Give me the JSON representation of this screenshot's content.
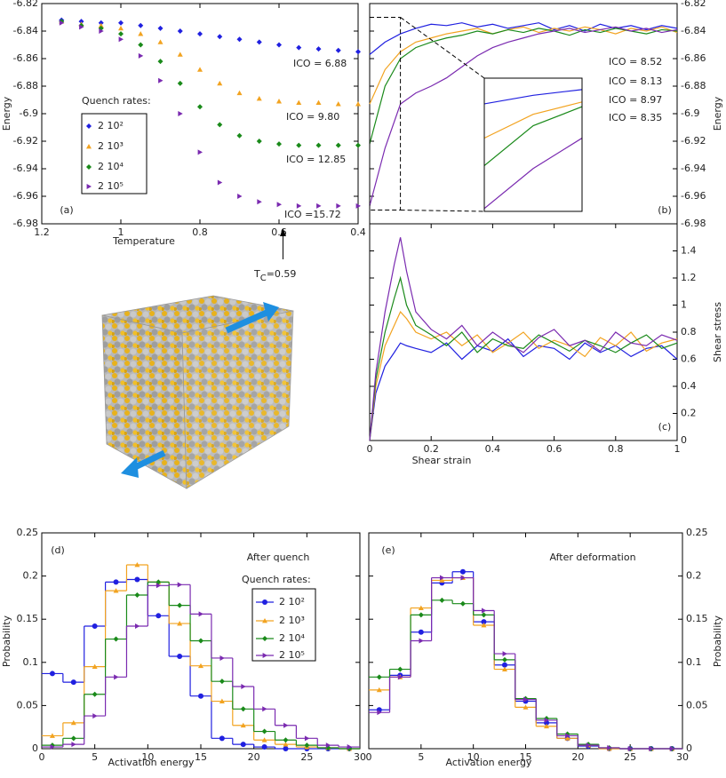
{
  "chart_data": [
    {
      "type": "scatter",
      "panel_label": "(a)",
      "x_label": "Temperature",
      "y_label": "Energy",
      "xlim": [
        1.2,
        0.4
      ],
      "xticks": [
        1.2,
        1,
        0.8,
        0.6,
        0.4
      ],
      "ylim": [
        -6.98,
        -6.82
      ],
      "yticks": [
        -6.98,
        -6.96,
        -6.94,
        -6.92,
        -6.9,
        -6.88,
        -6.86,
        -6.84,
        -6.82
      ],
      "legend_title": "Quench rates:",
      "tc": {
        "value": 0.59,
        "label_parts": [
          "T",
          "C",
          "=0.59"
        ]
      },
      "x": [
        1.15,
        1.1,
        1.05,
        1.0,
        0.95,
        0.9,
        0.85,
        0.8,
        0.75,
        0.7,
        0.65,
        0.6,
        0.55,
        0.5,
        0.45,
        0.4
      ],
      "series": [
        {
          "name": "2 10²",
          "color": "#2020e0",
          "marker": "diamond",
          "annotation": "ICO = 6.88",
          "values": [
            -6.832,
            -6.833,
            -6.834,
            -6.834,
            -6.836,
            -6.838,
            -6.84,
            -6.842,
            -6.844,
            -6.846,
            -6.848,
            -6.85,
            -6.852,
            -6.853,
            -6.854,
            -6.855
          ]
        },
        {
          "name": "2 10³",
          "color": "#f2a320",
          "marker": "triangle-up",
          "annotation": "ICO = 9.80",
          "values": [
            -6.833,
            -6.835,
            -6.836,
            -6.838,
            -6.842,
            -6.848,
            -6.857,
            -6.868,
            -6.878,
            -6.885,
            -6.889,
            -6.891,
            -6.892,
            -6.892,
            -6.893,
            -6.893
          ]
        },
        {
          "name": "2 10⁴",
          "color": "#1a8a1a",
          "marker": "diamond",
          "annotation": "ICO = 12.85",
          "values": [
            -6.833,
            -6.836,
            -6.838,
            -6.842,
            -6.85,
            -6.862,
            -6.878,
            -6.895,
            -6.908,
            -6.916,
            -6.92,
            -6.922,
            -6.923,
            -6.923,
            -6.923,
            -6.923
          ]
        },
        {
          "name": "2 10⁵",
          "color": "#7a2ab0",
          "marker": "triangle-right",
          "annotation": "ICO =15.72",
          "values": [
            -6.834,
            -6.837,
            -6.84,
            -6.846,
            -6.858,
            -6.876,
            -6.9,
            -6.928,
            -6.95,
            -6.96,
            -6.964,
            -6.966,
            -6.967,
            -6.967,
            -6.967,
            -6.967
          ]
        }
      ]
    },
    {
      "type": "line",
      "panel_label": "(b)",
      "y_label": "Energy",
      "y_axis_side": "right",
      "xlim": [
        0,
        1
      ],
      "ylim": [
        -6.98,
        -6.82
      ],
      "yticks": [
        -6.98,
        -6.96,
        -6.94,
        -6.92,
        -6.9,
        -6.88,
        -6.86,
        -6.84,
        -6.82
      ],
      "inset": {
        "xlim": [
          0,
          0.1
        ],
        "ylim": [
          -6.97,
          -6.83
        ]
      },
      "x": [
        0,
        0.05,
        0.1,
        0.15,
        0.2,
        0.25,
        0.3,
        0.35,
        0.4,
        0.45,
        0.5,
        0.55,
        0.6,
        0.65,
        0.7,
        0.75,
        0.8,
        0.85,
        0.9,
        0.95,
        1
      ],
      "series": [
        {
          "color": "#2020e0",
          "annotation": "ICO = 8.52",
          "values": [
            -6.857,
            -6.848,
            -6.842,
            -6.838,
            -6.835,
            -6.836,
            -6.834,
            -6.837,
            -6.835,
            -6.838,
            -6.836,
            -6.834,
            -6.839,
            -6.836,
            -6.84,
            -6.835,
            -6.838,
            -6.836,
            -6.839,
            -6.836,
            -6.838
          ]
        },
        {
          "color": "#f2a320",
          "annotation": "ICO = 8.13",
          "values": [
            -6.893,
            -6.868,
            -6.855,
            -6.848,
            -6.845,
            -6.842,
            -6.84,
            -6.838,
            -6.842,
            -6.839,
            -6.837,
            -6.841,
            -6.838,
            -6.84,
            -6.837,
            -6.839,
            -6.842,
            -6.838,
            -6.84,
            -6.837,
            -6.841
          ]
        },
        {
          "color": "#1a8a1a",
          "annotation": "ICO = 8.97",
          "values": [
            -6.922,
            -6.88,
            -6.86,
            -6.852,
            -6.848,
            -6.845,
            -6.843,
            -6.84,
            -6.842,
            -6.839,
            -6.841,
            -6.838,
            -6.84,
            -6.843,
            -6.839,
            -6.841,
            -6.838,
            -6.84,
            -6.842,
            -6.839,
            -6.84
          ]
        },
        {
          "color": "#7a2ab0",
          "annotation": "ICO = 8.35",
          "values": [
            -6.967,
            -6.925,
            -6.893,
            -6.885,
            -6.88,
            -6.874,
            -6.866,
            -6.858,
            -6.852,
            -6.848,
            -6.845,
            -6.842,
            -6.84,
            -6.838,
            -6.841,
            -6.839,
            -6.837,
            -6.84,
            -6.838,
            -6.841,
            -6.839
          ]
        }
      ]
    },
    {
      "type": "line",
      "panel_label": "(c)",
      "x_label": "Shear strain",
      "y_label": "Shear stress",
      "y_axis_side": "right",
      "xlim": [
        0,
        1
      ],
      "xticks": [
        0,
        0.2,
        0.4,
        0.6,
        0.8,
        1
      ],
      "ylim": [
        0,
        1.6
      ],
      "yticks": [
        0,
        0.2,
        0.4,
        0.6,
        0.8,
        1,
        1.2,
        1.4
      ],
      "x": [
        0,
        0.02,
        0.05,
        0.08,
        0.1,
        0.12,
        0.15,
        0.2,
        0.25,
        0.3,
        0.35,
        0.4,
        0.45,
        0.5,
        0.55,
        0.6,
        0.65,
        0.7,
        0.75,
        0.8,
        0.85,
        0.9,
        0.95,
        1
      ],
      "series": [
        {
          "color": "#2020e0",
          "values": [
            0,
            0.35,
            0.55,
            0.65,
            0.72,
            0.7,
            0.68,
            0.65,
            0.72,
            0.6,
            0.7,
            0.66,
            0.75,
            0.62,
            0.7,
            0.68,
            0.6,
            0.72,
            0.65,
            0.7,
            0.62,
            0.68,
            0.7,
            0.6
          ]
        },
        {
          "color": "#f2a320",
          "values": [
            0,
            0.4,
            0.7,
            0.85,
            0.95,
            0.9,
            0.8,
            0.75,
            0.8,
            0.7,
            0.78,
            0.65,
            0.72,
            0.8,
            0.68,
            0.74,
            0.7,
            0.62,
            0.76,
            0.7,
            0.8,
            0.66,
            0.72,
            0.75
          ]
        },
        {
          "color": "#1a8a1a",
          "values": [
            0,
            0.45,
            0.8,
            1.05,
            1.2,
            1.0,
            0.85,
            0.78,
            0.7,
            0.8,
            0.65,
            0.75,
            0.7,
            0.68,
            0.78,
            0.72,
            0.66,
            0.74,
            0.7,
            0.65,
            0.72,
            0.78,
            0.68,
            0.72
          ]
        },
        {
          "color": "#7a2ab0",
          "values": [
            0,
            0.5,
            0.95,
            1.3,
            1.5,
            1.25,
            0.95,
            0.82,
            0.75,
            0.85,
            0.7,
            0.8,
            0.72,
            0.65,
            0.76,
            0.82,
            0.7,
            0.74,
            0.66,
            0.8,
            0.72,
            0.7,
            0.78,
            0.74
          ]
        }
      ]
    },
    {
      "type": "histogram",
      "panel_label": "(d)",
      "title": "After quench",
      "x_label": "Activation energy",
      "y_label": "Probability",
      "xlim": [
        0,
        30
      ],
      "xticks": [
        0,
        5,
        10,
        15,
        20,
        25,
        30
      ],
      "ylim": [
        0,
        0.25
      ],
      "yticks": [
        0,
        0.05,
        0.1,
        0.15,
        0.2,
        0.25
      ],
      "legend_title": "Quench rates:",
      "bins": [
        0,
        2,
        4,
        6,
        8,
        10,
        12,
        14,
        16,
        18,
        20,
        22,
        24,
        26,
        28,
        30
      ],
      "series": [
        {
          "name": "2 10²",
          "color": "#2020e0",
          "marker": "circle",
          "values": [
            0.087,
            0.077,
            0.142,
            0.193,
            0.196,
            0.154,
            0.107,
            0.061,
            0.012,
            0.005,
            0.002,
            0,
            0,
            0,
            0
          ]
        },
        {
          "name": "2 10³",
          "color": "#f2a320",
          "marker": "triangle-up",
          "values": [
            0.015,
            0.03,
            0.095,
            0.183,
            0.213,
            0.193,
            0.145,
            0.096,
            0.055,
            0.027,
            0.01,
            0.005,
            0.002,
            0.001,
            0
          ]
        },
        {
          "name": "2 10⁴",
          "color": "#1a8a1a",
          "marker": "diamond",
          "values": [
            0.004,
            0.012,
            0.063,
            0.127,
            0.178,
            0.193,
            0.166,
            0.125,
            0.078,
            0.046,
            0.02,
            0.01,
            0.004,
            0.001,
            0
          ]
        },
        {
          "name": "2 10⁵",
          "color": "#7a2ab0",
          "marker": "triangle-right",
          "values": [
            0.002,
            0.005,
            0.038,
            0.083,
            0.142,
            0.189,
            0.19,
            0.156,
            0.105,
            0.072,
            0.046,
            0.027,
            0.012,
            0.004,
            0.002
          ]
        }
      ]
    },
    {
      "type": "histogram",
      "panel_label": "(e)",
      "title": "After deformation",
      "x_label": "Activation energy",
      "y_label": "Probability",
      "y_axis_side": "right",
      "xlim": [
        0,
        30
      ],
      "xticks": [
        0,
        5,
        10,
        15,
        20,
        25,
        30
      ],
      "ylim": [
        0,
        0.25
      ],
      "yticks": [
        0,
        0.05,
        0.1,
        0.15,
        0.2,
        0.25
      ],
      "bins": [
        0,
        2,
        4,
        6,
        8,
        10,
        12,
        14,
        16,
        18,
        20,
        22,
        24,
        26,
        28,
        30
      ],
      "series": [
        {
          "color": "#2020e0",
          "marker": "circle",
          "values": [
            0.045,
            0.085,
            0.135,
            0.192,
            0.205,
            0.147,
            0.097,
            0.055,
            0.03,
            0.012,
            0.003,
            0,
            0,
            0,
            0
          ]
        },
        {
          "color": "#f2a320",
          "marker": "triangle-up",
          "values": [
            0.068,
            0.083,
            0.163,
            0.195,
            0.198,
            0.143,
            0.092,
            0.048,
            0.026,
            0.012,
            0.004,
            0,
            0,
            0,
            0
          ]
        },
        {
          "color": "#1a8a1a",
          "marker": "diamond",
          "values": [
            0.083,
            0.092,
            0.155,
            0.172,
            0.168,
            0.155,
            0.103,
            0.058,
            0.035,
            0.017,
            0.005,
            0.001,
            0,
            0,
            0
          ]
        },
        {
          "color": "#7a2ab0",
          "marker": "triangle-right",
          "values": [
            0.042,
            0.083,
            0.125,
            0.198,
            0.198,
            0.16,
            0.11,
            0.057,
            0.033,
            0.015,
            0.004,
            0.001,
            0,
            0,
            0
          ]
        }
      ]
    }
  ]
}
